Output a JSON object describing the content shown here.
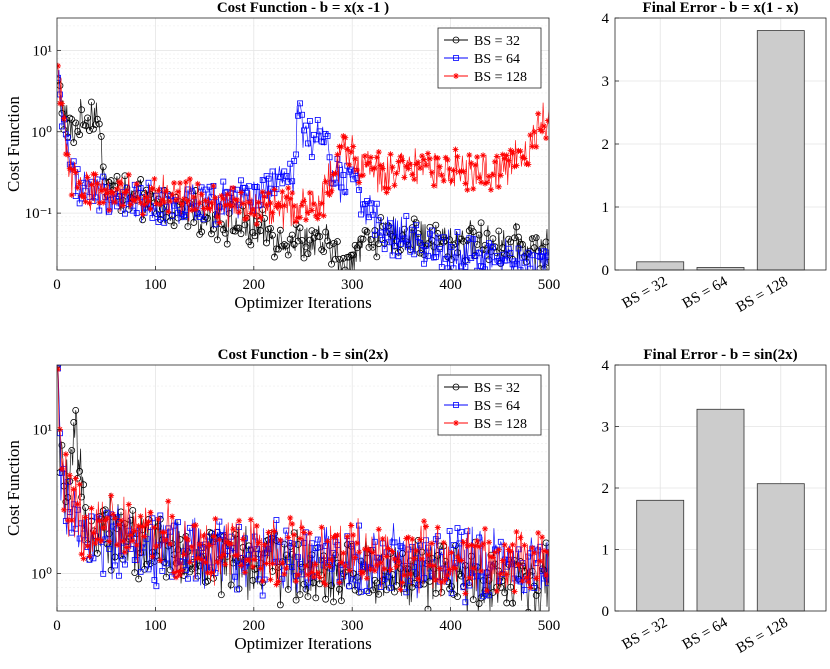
{
  "chart_data": [
    {
      "id": "cost1",
      "type": "line",
      "title": "Cost Function - b = x(x -1 )",
      "xlabel": "Optimizer Iterations",
      "ylabel": "Cost Function",
      "xlim": [
        0,
        500
      ],
      "ylim": [
        0.02,
        25
      ],
      "yscale": "log",
      "xticks": [
        0,
        100,
        200,
        300,
        400,
        500
      ],
      "yticks": [
        {
          "v": 0.1,
          "label": "10⁻¹"
        },
        {
          "v": 1,
          "label": "10⁰"
        },
        {
          "v": 10,
          "label": "10¹"
        }
      ],
      "grid": true,
      "legend": "top-right",
      "series": [
        {
          "name": "BS = 32",
          "color": "#000000",
          "marker": "circle",
          "anchors": [
            [
              1,
              4
            ],
            [
              3,
              3
            ],
            [
              6,
              1.8
            ],
            [
              10,
              1.3
            ],
            [
              15,
              0.9
            ],
            [
              20,
              1.2
            ],
            [
              30,
              1.5
            ],
            [
              40,
              1.8
            ],
            [
              48,
              0.3
            ],
            [
              55,
              0.2
            ],
            [
              80,
              0.14
            ],
            [
              120,
              0.11
            ],
            [
              160,
              0.09
            ],
            [
              200,
              0.06
            ],
            [
              240,
              0.045
            ],
            [
              280,
              0.04
            ],
            [
              292,
              0.018
            ],
            [
              300,
              0.03
            ],
            [
              310,
              0.045
            ],
            [
              320,
              0.05
            ],
            [
              360,
              0.05
            ],
            [
              400,
              0.045
            ],
            [
              450,
              0.042
            ],
            [
              500,
              0.035
            ]
          ]
        },
        {
          "name": "BS = 64",
          "color": "#0000ff",
          "marker": "square",
          "anchors": [
            [
              1,
              4.5
            ],
            [
              5,
              2
            ],
            [
              10,
              0.8
            ],
            [
              15,
              0.3
            ],
            [
              30,
              0.2
            ],
            [
              60,
              0.15
            ],
            [
              100,
              0.13
            ],
            [
              150,
              0.12
            ],
            [
              200,
              0.15
            ],
            [
              240,
              0.3
            ],
            [
              245,
              2.2
            ],
            [
              250,
              1.0
            ],
            [
              265,
              0.8
            ],
            [
              275,
              0.9
            ],
            [
              280,
              0.3
            ],
            [
              290,
              0.25
            ],
            [
              300,
              0.4
            ],
            [
              315,
              0.1
            ],
            [
              330,
              0.06
            ],
            [
              360,
              0.045
            ],
            [
              400,
              0.035
            ],
            [
              450,
              0.028
            ],
            [
              480,
              0.022
            ],
            [
              500,
              0.025
            ]
          ]
        },
        {
          "name": "BS = 128",
          "color": "#ff0000",
          "marker": "asterisk",
          "anchors": [
            [
              1,
              4.5
            ],
            [
              5,
              2
            ],
            [
              10,
              0.7
            ],
            [
              15,
              0.3
            ],
            [
              25,
              0.2
            ],
            [
              60,
              0.18
            ],
            [
              100,
              0.17
            ],
            [
              140,
              0.14
            ],
            [
              180,
              0.12
            ],
            [
              220,
              0.11
            ],
            [
              250,
              0.12
            ],
            [
              270,
              0.14
            ],
            [
              280,
              0.3
            ],
            [
              290,
              0.6
            ],
            [
              300,
              0.5
            ],
            [
              310,
              0.4
            ],
            [
              330,
              0.3
            ],
            [
              360,
              0.35
            ],
            [
              400,
              0.32
            ],
            [
              430,
              0.3
            ],
            [
              460,
              0.4
            ],
            [
              480,
              0.6
            ],
            [
              490,
              1.0
            ],
            [
              500,
              1.8
            ]
          ]
        }
      ]
    },
    {
      "id": "bar1",
      "type": "bar",
      "title": "Final Error - b = x(1 - x)",
      "categories": [
        "BS = 32",
        "BS = 64",
        "BS = 128"
      ],
      "values": [
        0.13,
        0.04,
        3.8
      ],
      "ylim": [
        0,
        4
      ],
      "yticks": [
        0,
        1,
        2,
        3,
        4
      ],
      "grid": true
    },
    {
      "id": "cost2",
      "type": "line",
      "title": "Cost Function - b = sin(2x)",
      "xlabel": "Optimizer Iterations",
      "ylabel": "Cost Function",
      "xlim": [
        0,
        500
      ],
      "ylim": [
        0.55,
        28
      ],
      "yscale": "log",
      "xticks": [
        0,
        100,
        200,
        300,
        400,
        500
      ],
      "yticks": [
        {
          "v": 1,
          "label": "10⁰"
        },
        {
          "v": 10,
          "label": "10¹"
        }
      ],
      "grid": true,
      "legend": "top-right",
      "series": [
        {
          "name": "BS = 32",
          "color": "#000000",
          "marker": "circle",
          "anchors": [
            [
              1,
              19
            ],
            [
              4,
              5
            ],
            [
              10,
              4
            ],
            [
              15,
              4.5
            ],
            [
              18,
              10
            ],
            [
              22,
              5
            ],
            [
              28,
              2.3
            ],
            [
              50,
              2.0
            ],
            [
              100,
              1.5
            ],
            [
              150,
              1.3
            ],
            [
              200,
              1.2
            ],
            [
              250,
              1.1
            ],
            [
              300,
              1.0
            ],
            [
              350,
              1.0
            ],
            [
              400,
              0.95
            ],
            [
              450,
              0.9
            ],
            [
              500,
              0.85
            ]
          ]
        },
        {
          "name": "BS = 64",
          "color": "#0000ff",
          "marker": "square",
          "anchors": [
            [
              1,
              19
            ],
            [
              4,
              4.5
            ],
            [
              10,
              3
            ],
            [
              18,
              2.5
            ],
            [
              25,
              1.8
            ],
            [
              50,
              1.7
            ],
            [
              100,
              1.5
            ],
            [
              150,
              1.4
            ],
            [
              200,
              1.3
            ],
            [
              250,
              1.3
            ],
            [
              300,
              1.25
            ],
            [
              350,
              1.2
            ],
            [
              400,
              1.2
            ],
            [
              450,
              1.2
            ],
            [
              500,
              1.2
            ]
          ]
        },
        {
          "name": "BS = 128",
          "color": "#ff0000",
          "marker": "asterisk",
          "anchors": [
            [
              1,
              20
            ],
            [
              4,
              7
            ],
            [
              8,
              4
            ],
            [
              15,
              2.8
            ],
            [
              25,
              2.3
            ],
            [
              50,
              2.1
            ],
            [
              100,
              1.8
            ],
            [
              150,
              1.6
            ],
            [
              200,
              1.5
            ],
            [
              250,
              1.4
            ],
            [
              300,
              1.35
            ],
            [
              350,
              1.3
            ],
            [
              400,
              1.25
            ],
            [
              450,
              1.2
            ],
            [
              500,
              1.15
            ]
          ]
        }
      ]
    },
    {
      "id": "bar2",
      "type": "bar",
      "title": "Final Error - b = sin(2x)",
      "categories": [
        "BS = 32",
        "BS = 64",
        "BS = 128"
      ],
      "values": [
        1.8,
        3.28,
        2.07
      ],
      "ylim": [
        0,
        4
      ],
      "yticks": [
        0,
        1,
        2,
        3,
        4
      ],
      "grid": true
    }
  ],
  "colors": {
    "bar_fill": "#cccccc",
    "bar_edge": "#333333"
  }
}
